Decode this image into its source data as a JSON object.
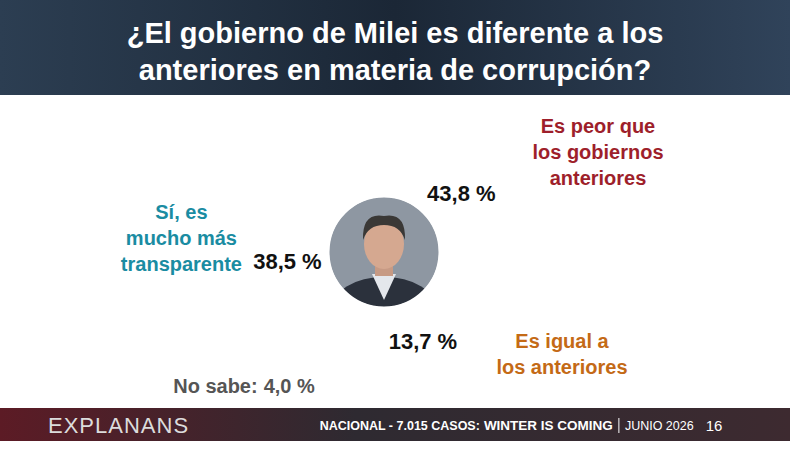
{
  "chart_data": {
    "type": "donut",
    "title": "¿El gobierno de Milei es diferente a los anteriores en materia de corrupción?",
    "categories": [
      "Es peor que los gobiernos anteriores",
      "Es igual a los anteriores",
      "No sabe:",
      "Sí, es mucho más transparente"
    ],
    "values": [
      43.8,
      13.7,
      4.0,
      38.5
    ],
    "value_labels": [
      "43,8 %",
      "13,7 %",
      "4,0 %",
      "38,5 %"
    ],
    "colors": [
      "#e8534b",
      "#f5b731",
      "#c6c6c6",
      "#1996ab"
    ],
    "data_labels": true
  },
  "footer": {
    "source": "EXPLANANS",
    "scope": "NACIONAL - 7.015 CASOS:",
    "headline": "WINTER IS COMING",
    "date": "JUNIO 2026",
    "page": "16"
  }
}
